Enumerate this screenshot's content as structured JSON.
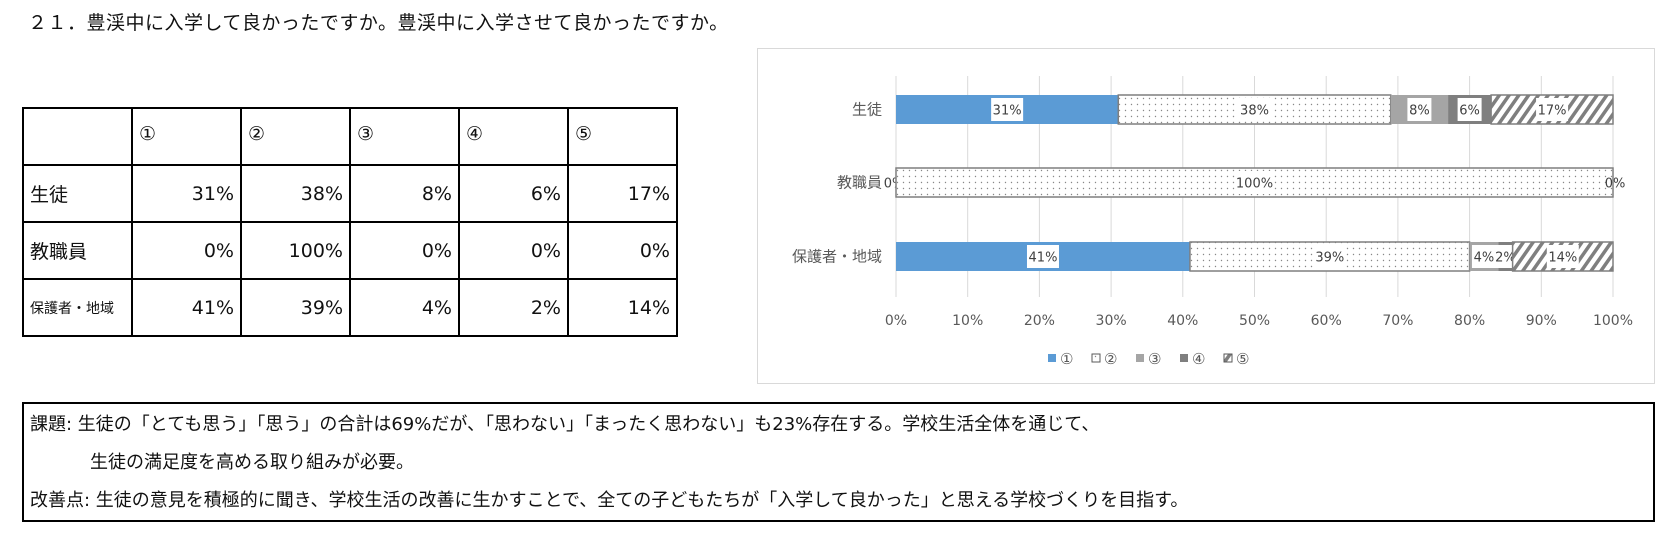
{
  "title": "２１．豊渓中に入学して良かったですか。豊渓中に入学させて良かったですか。",
  "table": {
    "headers": [
      "",
      "①",
      "②",
      "③",
      "④",
      "⑤"
    ],
    "rows": [
      {
        "label": "生徒",
        "values": [
          "31%",
          "38%",
          "8%",
          "6%",
          "17%"
        ]
      },
      {
        "label": "教職員",
        "values": [
          "0%",
          "100%",
          "0%",
          "0%",
          "0%"
        ]
      },
      {
        "label": "保護者・地域",
        "values": [
          "41%",
          "39%",
          "4%",
          "2%",
          "14%"
        ]
      }
    ]
  },
  "chart_data": {
    "type": "bar",
    "orientation": "horizontal-stacked-100",
    "categories": [
      "生徒",
      "教職員",
      "保護者・地域"
    ],
    "series": [
      {
        "name": "①",
        "values": [
          31,
          0,
          41
        ],
        "color": "#5b9bd5",
        "pattern": "solid"
      },
      {
        "name": "②",
        "values": [
          38,
          100,
          39
        ],
        "color": "#ffffff",
        "pattern": "dots"
      },
      {
        "name": "③",
        "values": [
          8,
          0,
          4
        ],
        "color": "#a5a5a5",
        "pattern": "solid"
      },
      {
        "name": "④",
        "values": [
          6,
          0,
          2
        ],
        "color": "#7f7f7f",
        "pattern": "solid"
      },
      {
        "name": "⑤",
        "values": [
          17,
          0,
          14
        ],
        "color": "#7f7f7f",
        "pattern": "hatch"
      }
    ],
    "data_labels": [
      [
        "31%",
        "38%",
        "8%",
        "6%",
        "17%"
      ],
      [
        "0%",
        "100%",
        "0%",
        "",
        ""
      ],
      [
        "41%",
        "39%",
        "4%",
        "2%",
        "14%"
      ]
    ],
    "xticks": [
      "0%",
      "10%",
      "20%",
      "30%",
      "40%",
      "50%",
      "60%",
      "70%",
      "80%",
      "90%",
      "100%"
    ],
    "xlim": [
      0,
      100
    ],
    "grid": true,
    "legend": "bottom"
  },
  "notes": {
    "line1": "課題: 生徒の「とても思う」「思う」の合計は69%だが、「思わない」「まったく思わない」も23%存在する。学校生活全体を通じて、",
    "line2": "生徒の満足度を高める取り組みが必要。",
    "line3": "改善点: 生徒の意見を積極的に聞き、学校生活の改善に生かすことで、全ての子どもたちが「入学して良かった」と思える学校づくりを目指す。"
  }
}
